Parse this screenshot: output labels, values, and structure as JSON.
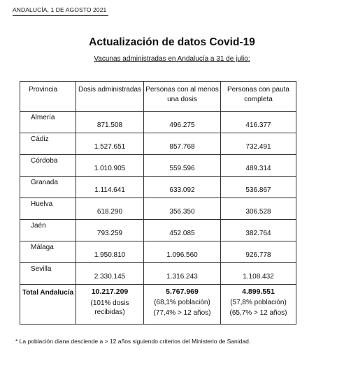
{
  "dateline": "ANDALUCÍA, 1 DE AGOSTO 2021",
  "title": "Actualización de datos Covid-19",
  "subtitle": "Vacunas administradas en Andalucía a 31 de julio:",
  "table": {
    "headers": {
      "provincia": "Provincia",
      "dosis": "Dosis administradas",
      "una_dosis": "Personas con al menos una dosis",
      "pauta": "Personas con pauta completa"
    },
    "rows": [
      {
        "provincia": "Almería",
        "dosis": "871.508",
        "una_dosis": "496.275",
        "pauta": "416.377"
      },
      {
        "provincia": "Cádiz",
        "dosis": "1.527.651",
        "una_dosis": "857.768",
        "pauta": "732.491"
      },
      {
        "provincia": "Córdoba",
        "dosis": "1.010.905",
        "una_dosis": "559.596",
        "pauta": "489.314"
      },
      {
        "provincia": "Granada",
        "dosis": "1.114.641",
        "una_dosis": "633.092",
        "pauta": "536.867"
      },
      {
        "provincia": "Huelva",
        "dosis": "618.290",
        "una_dosis": "356.350",
        "pauta": "306.528"
      },
      {
        "provincia": "Jaén",
        "dosis": "793.259",
        "una_dosis": "452.085",
        "pauta": "382.764"
      },
      {
        "provincia": "Málaga",
        "dosis": "1.950.810",
        "una_dosis": "1.096.560",
        "pauta": "926.778"
      },
      {
        "provincia": "Sevilla",
        "dosis": "2.330.145",
        "una_dosis": "1.316.243",
        "pauta": "1.108.432"
      }
    ],
    "total": {
      "label": "Total Andalucía",
      "dosis": "10.217.209",
      "dosis_note": "(101% dosis recibidas)",
      "una_dosis": "5.767.969",
      "una_dosis_pct": "(68,1% población)",
      "una_dosis_note": "(77,4% > 12 años)",
      "pauta": "4.899.551",
      "pauta_pct": "(57,8% población)",
      "pauta_note": "(65,7% > 12 años)"
    }
  },
  "footnote": "* La población diana desciende a > 12 años siguiendo criterios del Ministerio de Sanidad."
}
